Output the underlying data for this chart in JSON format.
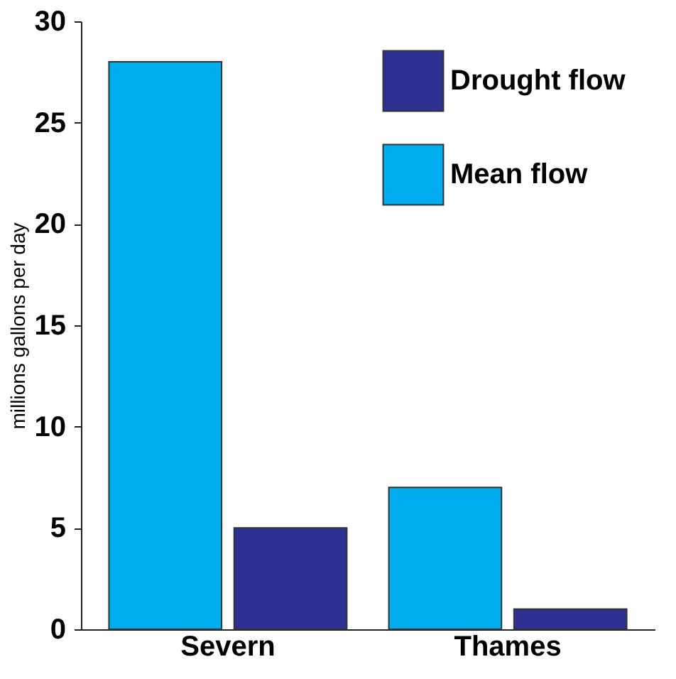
{
  "chart_data": {
    "type": "bar",
    "ylabel": "millions gallons per day",
    "categories": [
      "Severn",
      "Thames"
    ],
    "series": [
      {
        "name": "Mean flow",
        "color": "#00aeef",
        "values": [
          28,
          7
        ]
      },
      {
        "name": "Drought flow",
        "color": "#2e3192",
        "values": [
          5,
          1
        ]
      }
    ],
    "ylim": [
      0,
      30
    ],
    "yticks": [
      0,
      5,
      10,
      15,
      20,
      25,
      30
    ],
    "grid": false,
    "legend": "top right"
  }
}
